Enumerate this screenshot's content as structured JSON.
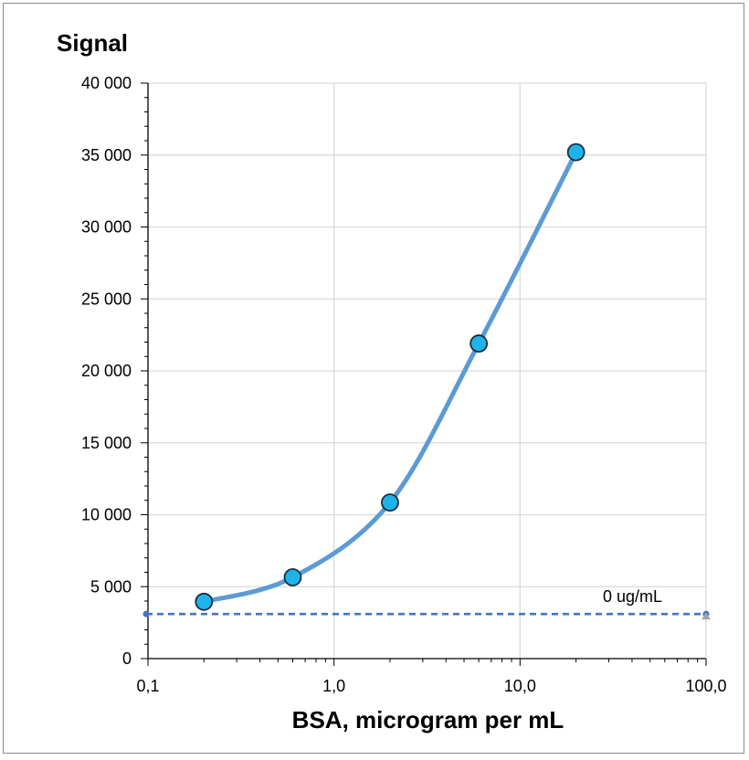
{
  "chart_data": {
    "type": "scatter",
    "title": "",
    "ylabel": "Signal",
    "xlabel": "BSA, microgram per mL",
    "x_scale": "log",
    "xlim": [
      0.1,
      100
    ],
    "ylim": [
      0,
      40000
    ],
    "x_ticks": [
      0.1,
      1,
      10,
      100
    ],
    "x_tick_labels": [
      "0,1",
      "1,0",
      "10,0",
      "100,0"
    ],
    "y_ticks": [
      0,
      5000,
      10000,
      15000,
      20000,
      25000,
      30000,
      35000,
      40000
    ],
    "y_tick_labels": [
      "0",
      "5 000",
      "10 000",
      "15 000",
      "20 000",
      "25 000",
      "30 000",
      "35 000",
      "40 000"
    ],
    "grid": true,
    "series": [
      {
        "x": [
          0.2,
          0.6,
          2,
          6,
          20
        ],
        "y": [
          3950,
          5650,
          10850,
          21900,
          35200
        ],
        "marker": "circle",
        "line": "smooth",
        "color": "#1EB4EB",
        "line_color": "#5B9BD5"
      }
    ],
    "reference_line": {
      "label": "0 ug/mL",
      "y": 3100,
      "x_range": [
        0.1,
        100
      ],
      "style": "dashed",
      "color": "#4472C4"
    }
  }
}
